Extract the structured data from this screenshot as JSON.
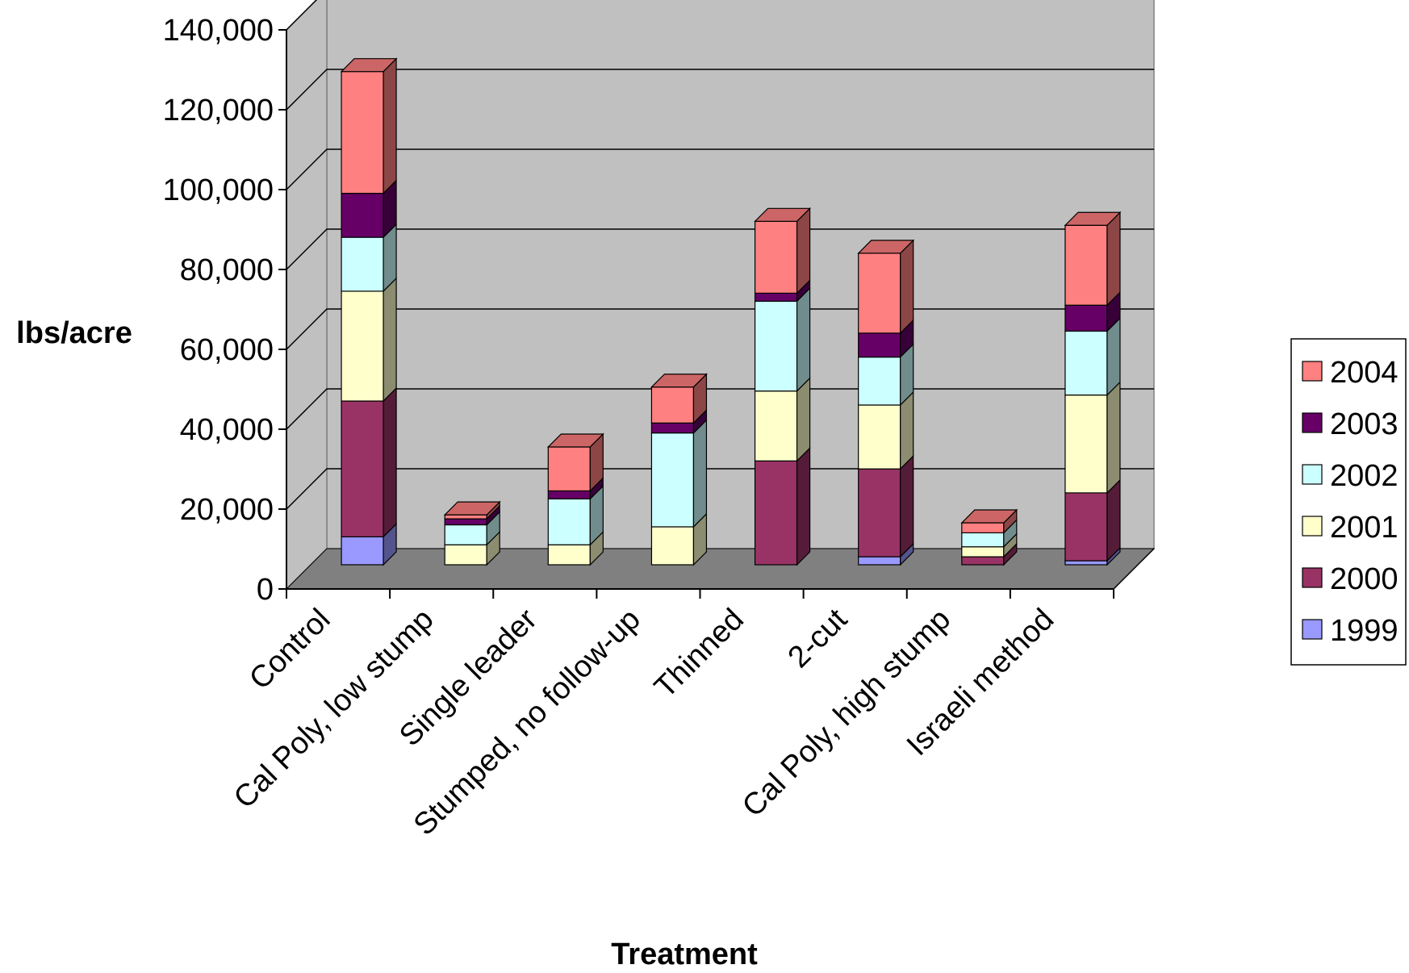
{
  "chart_data": {
    "type": "bar",
    "stacked": true,
    "three_d": true,
    "title": "",
    "xlabel": "Treatment",
    "ylabel": "lbs/acre",
    "ylim": [
      0,
      140000
    ],
    "yticks": [
      0,
      20000,
      40000,
      60000,
      80000,
      100000,
      120000,
      140000
    ],
    "ytick_labels": [
      "0",
      "20,000",
      "40,000",
      "60,000",
      "80,000",
      "100,000",
      "120,000",
      "140,000"
    ],
    "grid": true,
    "legend_position": "right",
    "categories": [
      "Control",
      "Cal Poly, low stump",
      "Single leader",
      "Stumped, no follow-up",
      "Thinned",
      "2-cut",
      "Cal Poly, high stump",
      "Israeli method"
    ],
    "series": [
      {
        "name": "1999",
        "color": "#9999ff",
        "values": [
          7000,
          0,
          0,
          0,
          0,
          2000,
          0,
          1000
        ]
      },
      {
        "name": "2000",
        "color": "#993366",
        "values": [
          34000,
          0,
          0,
          0,
          26000,
          22000,
          2000,
          17000
        ]
      },
      {
        "name": "2001",
        "color": "#ffffcc",
        "values": [
          27500,
          5000,
          5000,
          9500,
          17500,
          16000,
          2500,
          24500
        ]
      },
      {
        "name": "2002",
        "color": "#ccffff",
        "values": [
          13500,
          5000,
          11500,
          23500,
          22500,
          12000,
          3500,
          16000
        ]
      },
      {
        "name": "2003",
        "color": "#660066",
        "values": [
          11000,
          1500,
          2000,
          2500,
          2000,
          6000,
          0,
          6500
        ]
      },
      {
        "name": "2004",
        "color": "#ff8080",
        "values": [
          30500,
          1000,
          11000,
          9000,
          18000,
          20000,
          2500,
          20000
        ]
      }
    ]
  },
  "colors": {
    "plot_back": "#c0c0c0",
    "floor": "#808080",
    "gridline": "#000000"
  }
}
